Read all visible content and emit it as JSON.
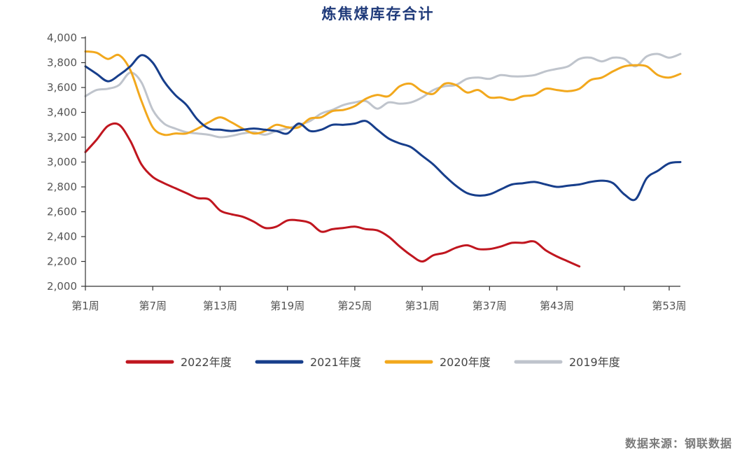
{
  "chart_data": {
    "type": "line",
    "title": "炼焦煤库存合计",
    "xlabel": "",
    "ylabel": "",
    "xlim": [
      1,
      53
    ],
    "ylim": [
      2000,
      4000
    ],
    "yticks": [
      2000,
      2200,
      2400,
      2600,
      2800,
      3000,
      3200,
      3400,
      3600,
      3800,
      4000
    ],
    "ytick_labels": [
      "2,000",
      "2,200",
      "2,400",
      "2,600",
      "2,800",
      "3,000",
      "3,200",
      "3,400",
      "3,600",
      "3,800",
      "4,000"
    ],
    "xticks": [
      1,
      7,
      13,
      19,
      25,
      31,
      37,
      43,
      53
    ],
    "xtick_labels": [
      "第1周",
      "第7周",
      "第13周",
      "第19周",
      "第25周",
      "第31周",
      "第37周",
      "第43周",
      "第53周"
    ],
    "grid": false,
    "legend_position": "bottom",
    "series": [
      {
        "name": "2022年度",
        "color": "#c0161f",
        "points": [
          [
            1,
            3080
          ],
          [
            2,
            3180
          ],
          [
            3,
            3290
          ],
          [
            4,
            3300
          ],
          [
            5,
            3170
          ],
          [
            6,
            2980
          ],
          [
            7,
            2880
          ],
          [
            8,
            2830
          ],
          [
            9,
            2790
          ],
          [
            10,
            2750
          ],
          [
            11,
            2710
          ],
          [
            12,
            2700
          ],
          [
            13,
            2610
          ],
          [
            14,
            2580
          ],
          [
            15,
            2560
          ],
          [
            16,
            2520
          ],
          [
            17,
            2470
          ],
          [
            18,
            2480
          ],
          [
            19,
            2530
          ],
          [
            20,
            2530
          ],
          [
            21,
            2510
          ],
          [
            22,
            2440
          ],
          [
            23,
            2460
          ],
          [
            24,
            2470
          ],
          [
            25,
            2480
          ],
          [
            26,
            2460
          ],
          [
            27,
            2450
          ],
          [
            28,
            2400
          ],
          [
            29,
            2320
          ],
          [
            30,
            2250
          ],
          [
            31,
            2200
          ],
          [
            32,
            2250
          ],
          [
            33,
            2270
          ],
          [
            34,
            2310
          ],
          [
            35,
            2330
          ],
          [
            36,
            2300
          ],
          [
            37,
            2300
          ],
          [
            38,
            2320
          ],
          [
            39,
            2350
          ],
          [
            40,
            2350
          ],
          [
            41,
            2360
          ],
          [
            42,
            2290
          ],
          [
            43,
            2240
          ],
          [
            44,
            2200
          ],
          [
            45,
            2160
          ]
        ]
      },
      {
        "name": "2021年度",
        "color": "#173e8b",
        "points": [
          [
            1,
            3770
          ],
          [
            2,
            3710
          ],
          [
            3,
            3650
          ],
          [
            4,
            3700
          ],
          [
            5,
            3770
          ],
          [
            6,
            3860
          ],
          [
            7,
            3800
          ],
          [
            8,
            3650
          ],
          [
            9,
            3540
          ],
          [
            10,
            3460
          ],
          [
            11,
            3340
          ],
          [
            12,
            3270
          ],
          [
            13,
            3260
          ],
          [
            14,
            3250
          ],
          [
            15,
            3260
          ],
          [
            16,
            3270
          ],
          [
            17,
            3260
          ],
          [
            18,
            3250
          ],
          [
            19,
            3230
          ],
          [
            20,
            3310
          ],
          [
            21,
            3250
          ],
          [
            22,
            3260
          ],
          [
            23,
            3300
          ],
          [
            24,
            3300
          ],
          [
            25,
            3310
          ],
          [
            26,
            3330
          ],
          [
            27,
            3260
          ],
          [
            28,
            3190
          ],
          [
            29,
            3150
          ],
          [
            30,
            3120
          ],
          [
            31,
            3050
          ],
          [
            32,
            2980
          ],
          [
            33,
            2890
          ],
          [
            34,
            2810
          ],
          [
            35,
            2750
          ],
          [
            36,
            2730
          ],
          [
            37,
            2740
          ],
          [
            38,
            2780
          ],
          [
            39,
            2820
          ],
          [
            40,
            2830
          ],
          [
            41,
            2840
          ],
          [
            42,
            2820
          ],
          [
            43,
            2800
          ],
          [
            44,
            2810
          ],
          [
            45,
            2820
          ],
          [
            46,
            2840
          ],
          [
            47,
            2850
          ],
          [
            48,
            2830
          ],
          [
            49,
            2740
          ],
          [
            50,
            2700
          ],
          [
            51,
            2870
          ],
          [
            52,
            2930
          ],
          [
            53,
            2990
          ],
          [
            54,
            3000
          ]
        ]
      },
      {
        "name": "2020年度",
        "color": "#f2a81d",
        "points": [
          [
            1,
            3890
          ],
          [
            2,
            3880
          ],
          [
            3,
            3830
          ],
          [
            4,
            3860
          ],
          [
            5,
            3740
          ],
          [
            6,
            3490
          ],
          [
            7,
            3280
          ],
          [
            8,
            3220
          ],
          [
            9,
            3230
          ],
          [
            10,
            3230
          ],
          [
            11,
            3270
          ],
          [
            12,
            3320
          ],
          [
            13,
            3360
          ],
          [
            14,
            3320
          ],
          [
            15,
            3270
          ],
          [
            16,
            3230
          ],
          [
            17,
            3250
          ],
          [
            18,
            3300
          ],
          [
            19,
            3280
          ],
          [
            20,
            3280
          ],
          [
            21,
            3350
          ],
          [
            22,
            3360
          ],
          [
            23,
            3410
          ],
          [
            24,
            3420
          ],
          [
            25,
            3450
          ],
          [
            26,
            3510
          ],
          [
            27,
            3540
          ],
          [
            28,
            3530
          ],
          [
            29,
            3610
          ],
          [
            30,
            3630
          ],
          [
            31,
            3570
          ],
          [
            32,
            3550
          ],
          [
            33,
            3630
          ],
          [
            34,
            3620
          ],
          [
            35,
            3560
          ],
          [
            36,
            3580
          ],
          [
            37,
            3520
          ],
          [
            38,
            3520
          ],
          [
            39,
            3500
          ],
          [
            40,
            3530
          ],
          [
            41,
            3540
          ],
          [
            42,
            3590
          ],
          [
            43,
            3580
          ],
          [
            44,
            3570
          ],
          [
            45,
            3590
          ],
          [
            46,
            3660
          ],
          [
            47,
            3680
          ],
          [
            48,
            3730
          ],
          [
            49,
            3770
          ],
          [
            50,
            3780
          ],
          [
            51,
            3770
          ],
          [
            52,
            3700
          ],
          [
            53,
            3680
          ],
          [
            54,
            3710
          ]
        ]
      },
      {
        "name": "2019年度",
        "color": "#bfc4cc",
        "points": [
          [
            1,
            3530
          ],
          [
            2,
            3580
          ],
          [
            3,
            3590
          ],
          [
            4,
            3620
          ],
          [
            5,
            3720
          ],
          [
            6,
            3640
          ],
          [
            7,
            3420
          ],
          [
            8,
            3310
          ],
          [
            9,
            3270
          ],
          [
            10,
            3240
          ],
          [
            11,
            3230
          ],
          [
            12,
            3220
          ],
          [
            13,
            3200
          ],
          [
            14,
            3210
          ],
          [
            15,
            3230
          ],
          [
            16,
            3240
          ],
          [
            17,
            3220
          ],
          [
            18,
            3250
          ],
          [
            19,
            3270
          ],
          [
            20,
            3300
          ],
          [
            21,
            3330
          ],
          [
            22,
            3390
          ],
          [
            23,
            3420
          ],
          [
            24,
            3460
          ],
          [
            25,
            3480
          ],
          [
            26,
            3490
          ],
          [
            27,
            3430
          ],
          [
            28,
            3480
          ],
          [
            29,
            3470
          ],
          [
            30,
            3480
          ],
          [
            31,
            3520
          ],
          [
            32,
            3580
          ],
          [
            33,
            3610
          ],
          [
            34,
            3620
          ],
          [
            35,
            3670
          ],
          [
            36,
            3680
          ],
          [
            37,
            3670
          ],
          [
            38,
            3700
          ],
          [
            39,
            3690
          ],
          [
            40,
            3690
          ],
          [
            41,
            3700
          ],
          [
            42,
            3730
          ],
          [
            43,
            3750
          ],
          [
            44,
            3770
          ],
          [
            45,
            3830
          ],
          [
            46,
            3840
          ],
          [
            47,
            3810
          ],
          [
            48,
            3840
          ],
          [
            49,
            3830
          ],
          [
            50,
            3770
          ],
          [
            51,
            3850
          ],
          [
            52,
            3870
          ],
          [
            53,
            3840
          ],
          [
            54,
            3870
          ]
        ]
      }
    ]
  },
  "source": "数据来源：钢联数据"
}
